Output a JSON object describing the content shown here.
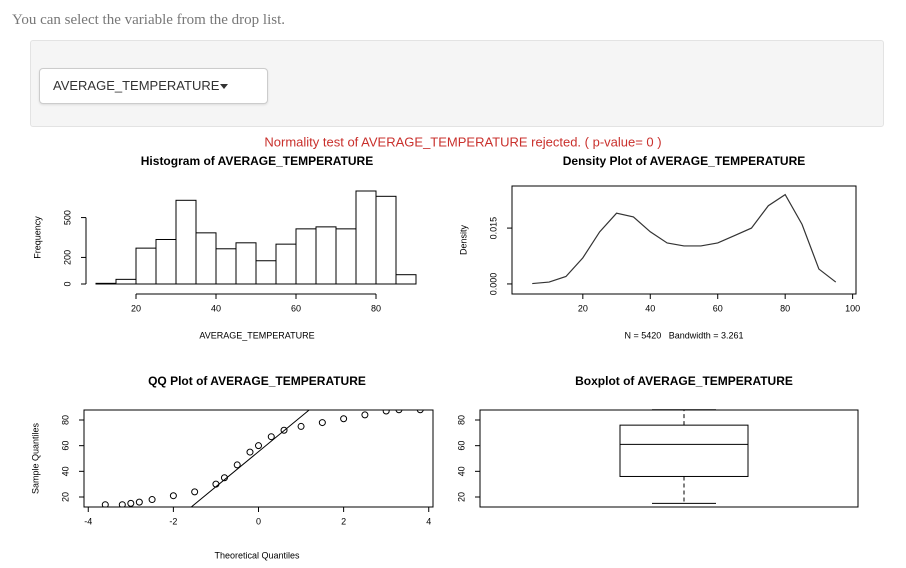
{
  "intro": "You can select the variable from the drop list.",
  "dropdown": {
    "selected": "AVERAGE_TEMPERATURE"
  },
  "test_message": "Normality test of AVERAGE_TEMPERATURE rejected. ( p-value= 0 )",
  "chart_data": [
    {
      "type": "histogram",
      "title": "Histogram of AVERAGE_TEMPERATURE",
      "x_label": "AVERAGE_TEMPERATURE",
      "y_label": "Frequency",
      "bins": [
        10,
        15,
        20,
        25,
        30,
        35,
        40,
        45,
        50,
        55,
        60,
        65,
        70,
        75,
        80,
        85,
        90
      ],
      "values": [
        5,
        35,
        270,
        335,
        630,
        385,
        265,
        310,
        175,
        300,
        415,
        430,
        415,
        700,
        660,
        70
      ],
      "xlim": [
        10,
        90
      ],
      "xticks": [
        20,
        40,
        60,
        80
      ],
      "ylim": [
        0,
        700
      ],
      "yticks": [
        0,
        200,
        500
      ],
      "color": "#ffffff"
    },
    {
      "type": "density",
      "title": "Density Plot of AVERAGE_TEMPERATURE",
      "subtitle": "N = 5420   Bandwidth = 3.261",
      "y_label": "Density",
      "x": [
        5,
        10,
        15,
        20,
        25,
        30,
        35,
        40,
        45,
        50,
        55,
        60,
        65,
        70,
        75,
        80,
        85,
        90,
        95
      ],
      "values": [
        0.0001,
        0.0005,
        0.002,
        0.007,
        0.014,
        0.019,
        0.018,
        0.014,
        0.011,
        0.0102,
        0.0102,
        0.011,
        0.013,
        0.015,
        0.021,
        0.024,
        0.016,
        0.004,
        0.0005
      ],
      "xlim": [
        -1,
        101
      ],
      "xticks": [
        20,
        40,
        60,
        80,
        100
      ],
      "ylim": [
        -0.0027,
        0.0263
      ],
      "yticks": [
        {
          "value": 0,
          "label": "0.000"
        },
        {
          "value": 0.015,
          "label": "0.015"
        }
      ],
      "color": "#333333"
    },
    {
      "type": "qq",
      "title": "QQ Plot of AVERAGE_TEMPERATURE",
      "x_label": "Theoretical Quantiles",
      "y_label": "Sample Quantiles",
      "x": [
        -3.6,
        -3.2,
        -3.0,
        -2.8,
        -2.5,
        -2.0,
        -1.5,
        -1.0,
        -0.8,
        -0.5,
        -0.2,
        0,
        0.3,
        0.6,
        1.0,
        1.5,
        2.0,
        2.5,
        3.0,
        3.3,
        3.8
      ],
      "values": [
        14,
        14,
        15,
        16,
        18,
        21,
        24,
        30,
        35,
        45,
        55,
        60,
        67,
        72,
        75,
        78,
        81,
        84,
        87,
        88,
        88
      ],
      "reference_line": {
        "x": [
          -1.58,
          1.19
        ],
        "y": [
          12.2,
          87.8
        ]
      },
      "xlim": [
        -4.1,
        4.1
      ],
      "xticks": [
        -4,
        -2,
        0,
        2,
        4
      ],
      "ylim": [
        12.2,
        87.8
      ],
      "yticks": [
        20,
        40,
        60,
        80
      ],
      "color": "#000000"
    },
    {
      "type": "boxplot",
      "title": "Boxplot of AVERAGE_TEMPERATURE",
      "min": 15,
      "q1": 36,
      "median": 61,
      "q3": 76,
      "max": 88,
      "ylim": [
        12.2,
        87.8
      ],
      "yticks": [
        20,
        40,
        60,
        80
      ],
      "color": "#ffffff"
    }
  ]
}
